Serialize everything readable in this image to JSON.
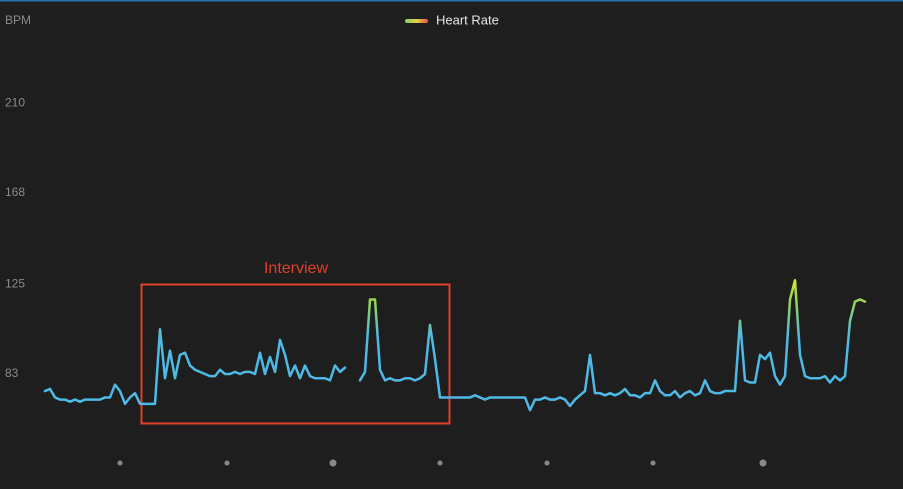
{
  "chart_data": {
    "type": "line",
    "y_label": "BPM",
    "annotation": "Interview",
    "ylim": [
      40,
      250
    ],
    "yticks": [
      83,
      125,
      168,
      210
    ],
    "series": [
      {
        "name": "Heart Rate",
        "color": "#4fb9e6",
        "legend_colors": [
          "#7fd35a",
          "#e8d24a",
          "#e8553d"
        ],
        "color_stops": [
          {
            "value": 100,
            "color": "#4fb9e6"
          },
          {
            "value": 118,
            "color": "#9bd64a"
          },
          {
            "value": 128,
            "color": "#d6e843"
          }
        ],
        "values": [
          75,
          76,
          72,
          71,
          71,
          70,
          71,
          70,
          71,
          71,
          71,
          71,
          72,
          72,
          78,
          75,
          69,
          72,
          74,
          69,
          69,
          69,
          69,
          104,
          81,
          94,
          81,
          92,
          93,
          87,
          85,
          84,
          83,
          82,
          82,
          85,
          83,
          83,
          84,
          83,
          84,
          84,
          83,
          93,
          83,
          91,
          84,
          99,
          92,
          82,
          87,
          81,
          87,
          82,
          81,
          81,
          81,
          80,
          87,
          84,
          86,
          null,
          null,
          80,
          84,
          118,
          118,
          85,
          80,
          81,
          80,
          80,
          81,
          81,
          80,
          81,
          83,
          106,
          90,
          72,
          72,
          72,
          72,
          72,
          72,
          72,
          73,
          72,
          71,
          72,
          72,
          72,
          72,
          72,
          72,
          72,
          72,
          66,
          71,
          71,
          72,
          71,
          71,
          72,
          71,
          68,
          71,
          73,
          75,
          92,
          74,
          74,
          73,
          74,
          73,
          74,
          76,
          73,
          73,
          72,
          74,
          74,
          80,
          75,
          73,
          73,
          75,
          72,
          74,
          75,
          73,
          74,
          80,
          75,
          74,
          74,
          75,
          75,
          75,
          108,
          80,
          79,
          79,
          92,
          90,
          93,
          82,
          78,
          82,
          118,
          127,
          92,
          82,
          81,
          81,
          81,
          82,
          79,
          82,
          80,
          82,
          108,
          117,
          118,
          117
        ]
      }
    ]
  }
}
